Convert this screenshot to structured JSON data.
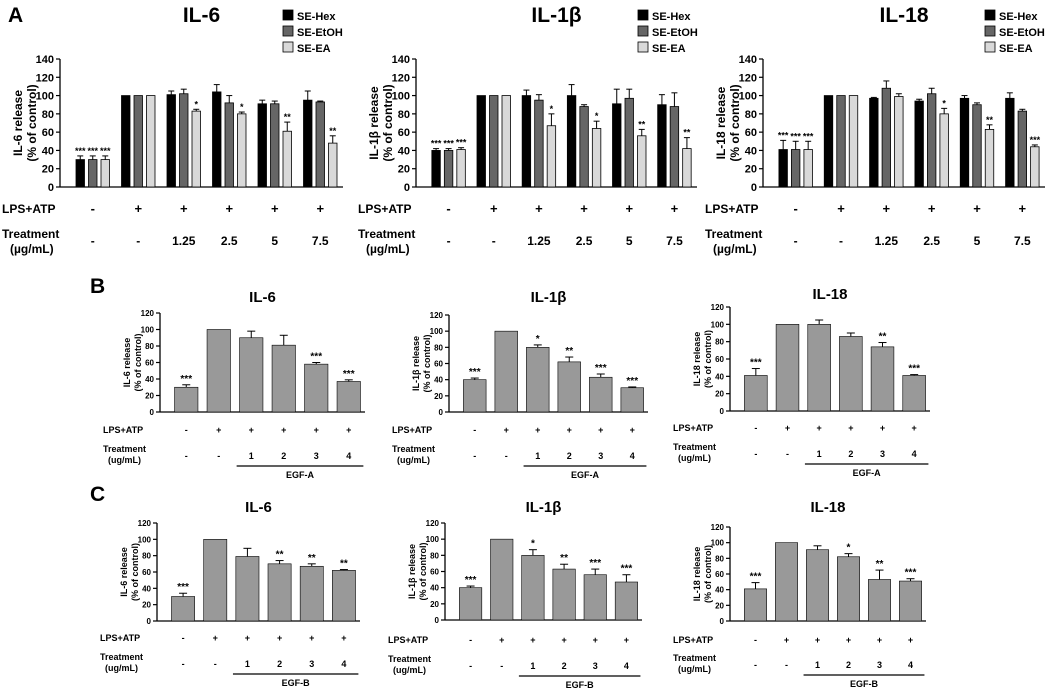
{
  "panel_labels": {
    "a": "A",
    "b": "B",
    "c": "C"
  },
  "legend_labels": [
    "SE-Hex",
    "SE-EtOH",
    "SE-EA"
  ],
  "row_labels": {
    "lps": "LPS+ATP",
    "treatment": "Treatment",
    "unit_a": "(µg/mL)",
    "unit_bc": "(ug/mL)"
  },
  "colors": {
    "hex": "#000000",
    "etoh": "#666666",
    "ea": "#d9d9d9",
    "single": "#999999"
  },
  "chart_data": [
    {
      "id": "A1",
      "type": "bar",
      "title": "IL-6",
      "ylabel": [
        "IL-6 release",
        "(% of control)"
      ],
      "ylim": [
        0,
        140
      ],
      "yticks": [
        0,
        20,
        40,
        60,
        80,
        100,
        120,
        140
      ],
      "series_names": [
        "SE-Hex",
        "SE-EtOH",
        "SE-EA"
      ],
      "lps_row": [
        "-",
        "+",
        "+",
        "+",
        "+",
        "+"
      ],
      "treat_row": [
        "-",
        "-",
        "1.25",
        "2.5",
        "5",
        "7.5"
      ],
      "groups": [
        {
          "values": [
            30,
            30,
            30
          ],
          "errors": [
            4,
            4,
            4
          ],
          "sig": [
            "***",
            "***",
            "***"
          ]
        },
        {
          "values": [
            100,
            100,
            100
          ],
          "errors": [
            0,
            0,
            0
          ],
          "sig": [
            "",
            "",
            ""
          ]
        },
        {
          "values": [
            101,
            102,
            83
          ],
          "errors": [
            4,
            5,
            2
          ],
          "sig": [
            "",
            "",
            "*"
          ]
        },
        {
          "values": [
            104,
            92,
            80
          ],
          "errors": [
            8,
            8,
            2
          ],
          "sig": [
            "",
            "",
            "*"
          ]
        },
        {
          "values": [
            91,
            91,
            61
          ],
          "errors": [
            4,
            3,
            10
          ],
          "sig": [
            "",
            "",
            "**"
          ]
        },
        {
          "values": [
            95,
            93,
            48
          ],
          "errors": [
            10,
            1,
            8
          ],
          "sig": [
            "",
            "",
            "**"
          ]
        }
      ]
    },
    {
      "id": "A2",
      "type": "bar",
      "title": "IL-1β",
      "ylabel": [
        "IL-1β release",
        "(% of control)"
      ],
      "ylim": [
        0,
        140
      ],
      "yticks": [
        0,
        20,
        40,
        60,
        80,
        100,
        120,
        140
      ],
      "series_names": [
        "SE-Hex",
        "SE-EtOH",
        "SE-EA"
      ],
      "lps_row": [
        "-",
        "+",
        "+",
        "+",
        "+",
        "+"
      ],
      "treat_row": [
        "-",
        "-",
        "1.25",
        "2.5",
        "5",
        "7.5"
      ],
      "groups": [
        {
          "values": [
            40,
            40,
            41
          ],
          "errors": [
            2,
            2,
            2
          ],
          "sig": [
            "***",
            "***",
            "***"
          ]
        },
        {
          "values": [
            100,
            100,
            100
          ],
          "errors": [
            0,
            0,
            0
          ],
          "sig": [
            "",
            "",
            ""
          ]
        },
        {
          "values": [
            100,
            95,
            67
          ],
          "errors": [
            6,
            6,
            13
          ],
          "sig": [
            "",
            "",
            "*"
          ]
        },
        {
          "values": [
            100,
            88,
            64
          ],
          "errors": [
            12,
            2,
            8
          ],
          "sig": [
            "",
            "",
            "*"
          ]
        },
        {
          "values": [
            91,
            97,
            56
          ],
          "errors": [
            16,
            10,
            7
          ],
          "sig": [
            "",
            "",
            "**"
          ]
        },
        {
          "values": [
            90,
            88,
            42
          ],
          "errors": [
            11,
            15,
            12
          ],
          "sig": [
            "",
            "",
            "**"
          ]
        }
      ]
    },
    {
      "id": "A3",
      "type": "bar",
      "title": "IL-18",
      "ylabel": [
        "IL-18 release",
        "(% of control)"
      ],
      "ylim": [
        0,
        140
      ],
      "yticks": [
        0,
        20,
        40,
        60,
        80,
        100,
        120,
        140
      ],
      "series_names": [
        "SE-Hex",
        "SE-EtOH",
        "SE-EA"
      ],
      "lps_row": [
        "-",
        "+",
        "+",
        "+",
        "+",
        "+"
      ],
      "treat_row": [
        "-",
        "-",
        "1.25",
        "2.5",
        "5",
        "7.5"
      ],
      "groups": [
        {
          "values": [
            41,
            41,
            41
          ],
          "errors": [
            10,
            9,
            9
          ],
          "sig": [
            "***",
            "***",
            "***"
          ]
        },
        {
          "values": [
            100,
            100,
            100
          ],
          "errors": [
            0,
            0,
            0
          ],
          "sig": [
            "",
            "",
            ""
          ]
        },
        {
          "values": [
            97,
            108,
            99
          ],
          "errors": [
            1,
            8,
            3
          ],
          "sig": [
            "",
            "",
            ""
          ]
        },
        {
          "values": [
            94,
            102,
            80
          ],
          "errors": [
            2,
            6,
            6
          ],
          "sig": [
            "",
            "",
            "*"
          ]
        },
        {
          "values": [
            97,
            90,
            63
          ],
          "errors": [
            3,
            2,
            5
          ],
          "sig": [
            "",
            "",
            "**"
          ]
        },
        {
          "values": [
            97,
            83,
            44
          ],
          "errors": [
            6,
            2,
            2
          ],
          "sig": [
            "",
            "",
            "***"
          ]
        }
      ]
    },
    {
      "id": "B1",
      "type": "bar",
      "title": "IL-6",
      "ylabel": [
        "IL-6 release",
        "(% of control)"
      ],
      "ylim": [
        0,
        120
      ],
      "yticks": [
        0,
        20,
        40,
        60,
        80,
        100,
        120
      ],
      "lps_row": [
        "-",
        "+",
        "+",
        "+",
        "+",
        "+"
      ],
      "treat_row": [
        "-",
        "-",
        "1",
        "2",
        "3",
        "4"
      ],
      "group_label": "EGF-A",
      "values": [
        30,
        100,
        90,
        81,
        58,
        37
      ],
      "errors": [
        3,
        0,
        8,
        12,
        2,
        2
      ],
      "sig": [
        "***",
        "",
        "",
        "",
        "***",
        "***"
      ]
    },
    {
      "id": "B2",
      "type": "bar",
      "title": "IL-1β",
      "ylabel": [
        "IL-1β release",
        "(% of control)"
      ],
      "ylim": [
        0,
        120
      ],
      "yticks": [
        0,
        20,
        40,
        60,
        80,
        100,
        120
      ],
      "lps_row": [
        "-",
        "+",
        "+",
        "+",
        "+",
        "+"
      ],
      "treat_row": [
        "-",
        "-",
        "1",
        "2",
        "3",
        "4"
      ],
      "group_label": "EGF-A",
      "values": [
        40,
        100,
        80,
        62,
        43,
        30
      ],
      "errors": [
        2,
        0,
        3,
        6,
        4,
        1
      ],
      "sig": [
        "***",
        "",
        "*",
        "**",
        "***",
        "***"
      ]
    },
    {
      "id": "B3",
      "type": "bar",
      "title": "IL-18",
      "ylabel": [
        "IL-18 release",
        "(% of control)"
      ],
      "ylim": [
        0,
        120
      ],
      "yticks": [
        0,
        20,
        40,
        60,
        80,
        100,
        120
      ],
      "lps_row": [
        "-",
        "+",
        "+",
        "+",
        "+",
        "+"
      ],
      "treat_row": [
        "-",
        "-",
        "1",
        "2",
        "3",
        "4"
      ],
      "group_label": "EGF-A",
      "values": [
        41,
        100,
        100,
        86,
        74,
        41
      ],
      "errors": [
        8,
        0,
        5,
        4,
        5,
        1
      ],
      "sig": [
        "***",
        "",
        "",
        "",
        "**",
        "***"
      ]
    },
    {
      "id": "C1",
      "type": "bar",
      "title": "IL-6",
      "ylabel": [
        "IL-6 release",
        "(% of control)"
      ],
      "ylim": [
        0,
        120
      ],
      "yticks": [
        0,
        20,
        40,
        60,
        80,
        100,
        120
      ],
      "lps_row": [
        "-",
        "+",
        "+",
        "+",
        "+",
        "+"
      ],
      "treat_row": [
        "-",
        "-",
        "1",
        "2",
        "3",
        "4"
      ],
      "group_label": "EGF-B",
      "values": [
        30,
        100,
        79,
        70,
        67,
        62
      ],
      "errors": [
        4,
        0,
        10,
        4,
        3,
        1
      ],
      "sig": [
        "***",
        "",
        "",
        "**",
        "**",
        "**"
      ]
    },
    {
      "id": "C2",
      "type": "bar",
      "title": "IL-1β",
      "ylabel": [
        "IL-1β release",
        "(% of control)"
      ],
      "ylim": [
        0,
        120
      ],
      "yticks": [
        0,
        20,
        40,
        60,
        80,
        100,
        120
      ],
      "lps_row": [
        "-",
        "+",
        "+",
        "+",
        "+",
        "+"
      ],
      "treat_row": [
        "-",
        "-",
        "1",
        "2",
        "3",
        "4"
      ],
      "group_label": "EGF-B",
      "values": [
        40,
        100,
        80,
        63,
        56,
        47
      ],
      "errors": [
        2,
        0,
        7,
        6,
        7,
        9
      ],
      "sig": [
        "***",
        "",
        "*",
        "**",
        "***",
        "***"
      ]
    },
    {
      "id": "C3",
      "type": "bar",
      "title": "IL-18",
      "ylabel": [
        "IL-18 release",
        "(% of control)"
      ],
      "ylim": [
        0,
        120
      ],
      "yticks": [
        0,
        20,
        40,
        60,
        80,
        100,
        120
      ],
      "lps_row": [
        "-",
        "+",
        "+",
        "+",
        "+",
        "+"
      ],
      "treat_row": [
        "-",
        "-",
        "1",
        "2",
        "3",
        "4"
      ],
      "group_label": "EGF-B",
      "values": [
        41,
        100,
        91,
        82,
        53,
        51
      ],
      "errors": [
        8,
        0,
        5,
        4,
        12,
        3
      ],
      "sig": [
        "***",
        "",
        "",
        "*",
        "**",
        "***"
      ]
    }
  ]
}
